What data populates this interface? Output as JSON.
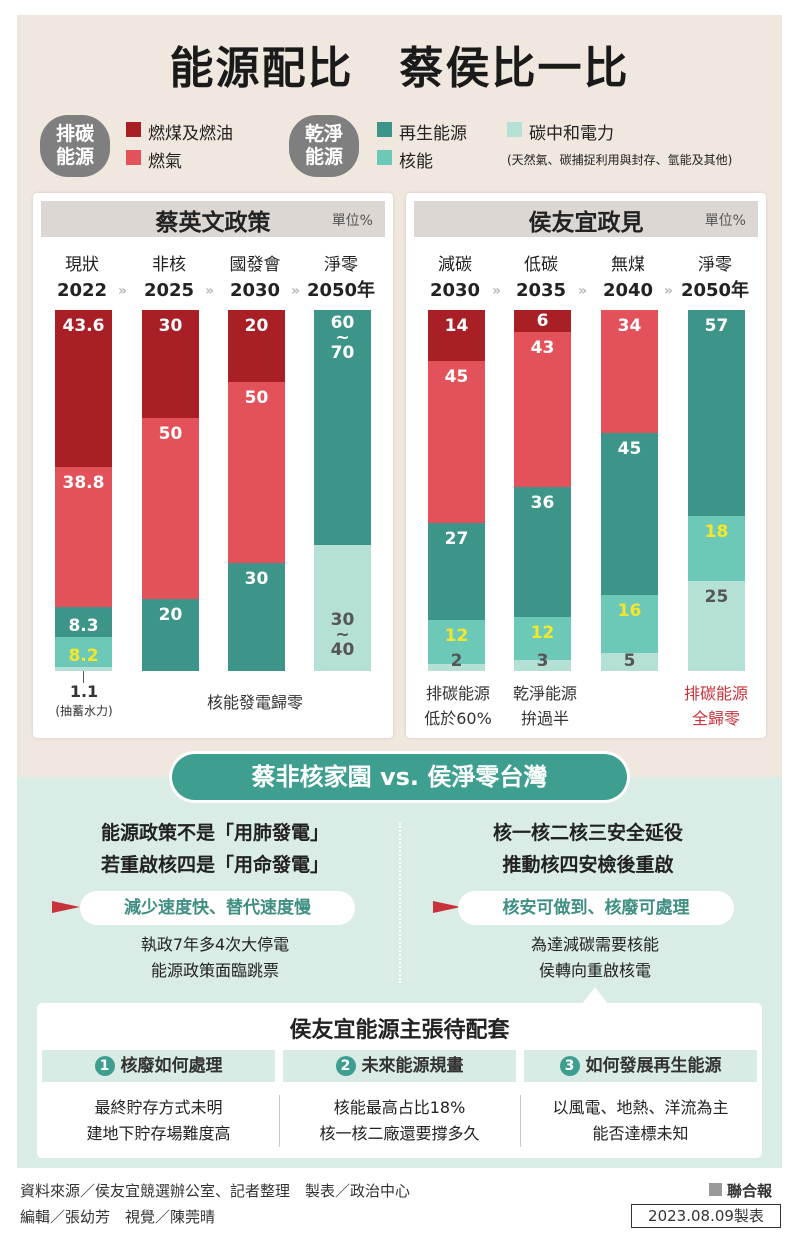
{
  "title": "能源配比　蔡侯比一比",
  "legend": {
    "carbon_group": "排碳\n能源",
    "clean_group": "乾淨\n能源",
    "items": [
      {
        "label": "燃煤及燃油",
        "color": "#a81f26"
      },
      {
        "label": "燃氣",
        "color": "#e3525b"
      },
      {
        "label": "再生能源",
        "color": "#3c9588"
      },
      {
        "label": "核能",
        "color": "#6cc9b8"
      },
      {
        "label": "碳中和電力",
        "color": "#b5e0d5"
      }
    ],
    "carbon_neutral_note": "(天然氣、碳捕捉利用與封存、氫能及其他)"
  },
  "chart_data": [
    {
      "type": "bar",
      "stacked": true,
      "title": "蔡英文政策",
      "unit": "單位%",
      "categories": [
        {
          "label": "現狀",
          "year": "2022"
        },
        {
          "label": "非核",
          "year": "2025"
        },
        {
          "label": "國發會",
          "year": "2030"
        },
        {
          "label": "淨零",
          "year": "2050年"
        }
      ],
      "series": [
        {
          "name": "燃煤及燃油",
          "values": [
            43.6,
            30,
            20,
            0
          ],
          "labels": [
            "43.6",
            "30",
            "20",
            ""
          ]
        },
        {
          "name": "燃氣",
          "values": [
            38.8,
            50,
            50,
            0
          ],
          "labels": [
            "38.8",
            "50",
            "50",
            ""
          ]
        },
        {
          "name": "再生能源",
          "values": [
            8.3,
            20,
            30,
            65
          ],
          "labels": [
            "8.3",
            "20",
            "30",
            "60\n~\n70"
          ]
        },
        {
          "name": "核能",
          "values": [
            8.2,
            0,
            0,
            0
          ],
          "labels": [
            "8.2",
            "",
            "",
            ""
          ]
        },
        {
          "name": "碳中和電力",
          "values": [
            1.1,
            0,
            0,
            35
          ],
          "labels": [
            "",
            "",
            "",
            "30\n~\n40"
          ]
        }
      ],
      "notes": {
        "small_value": "1.1",
        "small_note": "(抽蓄水力)",
        "bottom_note": "核能發電歸零"
      }
    },
    {
      "type": "bar",
      "stacked": true,
      "title": "侯友宜政見",
      "unit": "單位%",
      "categories": [
        {
          "label": "減碳",
          "year": "2030"
        },
        {
          "label": "低碳",
          "year": "2035"
        },
        {
          "label": "無煤",
          "year": "2040"
        },
        {
          "label": "淨零",
          "year": "2050年"
        }
      ],
      "series": [
        {
          "name": "燃煤及燃油",
          "values": [
            14,
            6,
            0,
            0
          ],
          "labels": [
            "14",
            "6",
            "",
            ""
          ]
        },
        {
          "name": "燃氣",
          "values": [
            45,
            43,
            34,
            0
          ],
          "labels": [
            "45",
            "43",
            "34",
            ""
          ]
        },
        {
          "name": "再生能源",
          "values": [
            27,
            36,
            45,
            57
          ],
          "labels": [
            "27",
            "36",
            "45",
            "57"
          ]
        },
        {
          "name": "核能",
          "values": [
            12,
            12,
            16,
            18
          ],
          "labels": [
            "12",
            "12",
            "16",
            "18"
          ]
        },
        {
          "name": "碳中和電力",
          "values": [
            2,
            3,
            5,
            25
          ],
          "labels": [
            "2",
            "3",
            "5",
            "25"
          ]
        }
      ],
      "notes": {
        "note1": "排碳能源\n低於60%",
        "note2": "乾淨能源\n拚過半",
        "note3": "排碳能源\n全歸零"
      }
    }
  ],
  "comparison": {
    "banner": "蔡非核家園 vs. 侯淨零台灣",
    "left": {
      "headline": "能源政策不是「用肺發電」\n若重啟核四是「用命發電」",
      "tag": "減少速度快、替代速度慢",
      "detail": "執政7年多4次大停電\n能源政策面臨跳票"
    },
    "right": {
      "headline": "核一核二核三安全延役\n推動核四安檢後重啟",
      "tag": "核安可做到、核廢可處理",
      "detail": "為達減碳需要核能\n侯轉向重啟核電"
    }
  },
  "pending": {
    "title": "侯友宜能源主張待配套",
    "items": [
      {
        "num": "1",
        "label": "核廢如何處理",
        "body": "最終貯存方式未明\n建地下貯存場難度高"
      },
      {
        "num": "2",
        "label": "未來能源規畫",
        "body": "核能最高占比18%\n核一核二廠還要撐多久"
      },
      {
        "num": "3",
        "label": "如何發展再生能源",
        "body": "以風電、地熱、洋流為主\n能否達標未知"
      }
    ]
  },
  "footer": {
    "source": "資料來源／侯友宜競選辦公室、記者整理　製表／政治中心",
    "editors": "編輯／張幼芳　視覺／陳莞晴",
    "publisher": "聯合報",
    "date": "2023.08.09製表"
  }
}
